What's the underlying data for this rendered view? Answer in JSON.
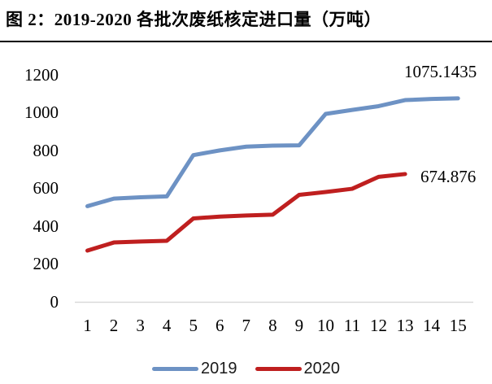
{
  "header": {
    "title": "图 2：2019-2020 各批次废纸核定进口量（万吨）"
  },
  "chart_data": {
    "type": "line",
    "title": "图 2：2019-2020 各批次废纸核定进口量（万吨）",
    "xlabel": "",
    "ylabel": "",
    "categories": [
      1,
      2,
      3,
      4,
      5,
      6,
      7,
      8,
      9,
      10,
      11,
      12,
      13,
      14,
      15
    ],
    "series": [
      {
        "name": "2019",
        "color": "#6D92C4",
        "values": [
          505,
          545,
          552,
          557,
          775,
          800,
          820,
          825,
          827,
          993,
          1014,
          1034,
          1066,
          1072,
          1075.1435
        ]
      },
      {
        "name": "2020",
        "color": "#BF1F1F",
        "values": [
          270,
          313,
          318,
          322,
          440,
          450,
          456,
          460,
          565,
          580,
          597,
          660,
          674.876
        ]
      }
    ],
    "yticks": [
      0,
      200,
      400,
      600,
      800,
      1000,
      1200
    ],
    "ylim": [
      0,
      1200
    ],
    "grid": false,
    "legend_position": "bottom",
    "axis_line_color": "#D9D9D9",
    "annotations": [
      {
        "series": "2019",
        "text": "1075.1435"
      },
      {
        "series": "2020",
        "text": "674.876"
      }
    ]
  }
}
